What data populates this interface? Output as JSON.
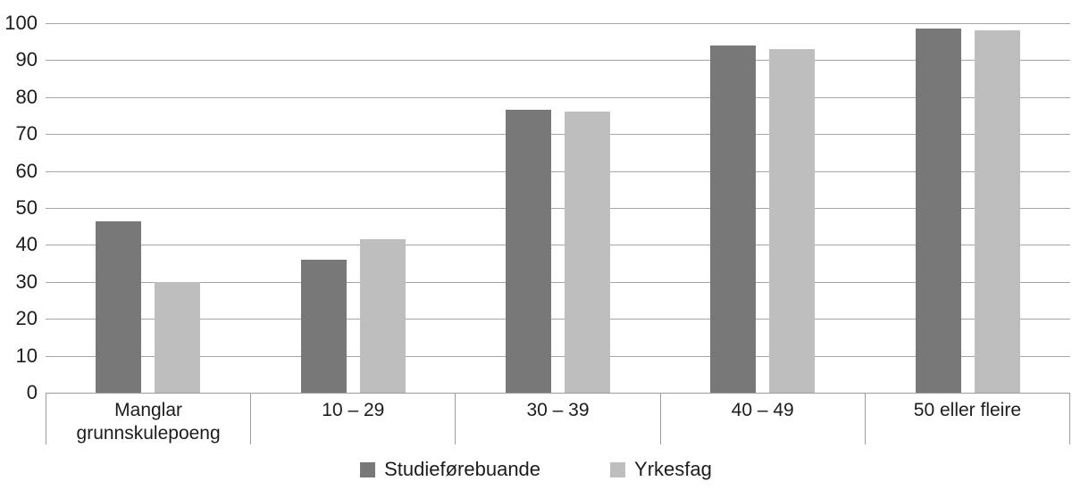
{
  "figure": {
    "background": "#ffffff"
  },
  "chart_data": {
    "type": "bar",
    "title": "",
    "xlabel": "",
    "ylabel": "",
    "categories": [
      "Manglar grunnskulepoeng",
      "10 – 29",
      "30 – 39",
      "40 – 49",
      "50 eller fleire"
    ],
    "series": [
      {
        "name": "Studieførebuande",
        "color": "#787878",
        "values": [
          46.5,
          36,
          76.5,
          94,
          98.5
        ]
      },
      {
        "name": "Yrkesfag",
        "color": "#bebebe",
        "values": [
          30,
          41.5,
          76,
          93,
          98
        ]
      }
    ],
    "ylim": [
      0,
      100
    ],
    "yticks": [
      0,
      10,
      20,
      30,
      40,
      50,
      60,
      70,
      80,
      90,
      100
    ],
    "grid": true,
    "gridline_color": "#a6a6a6",
    "axis_color": "#9b9b9b",
    "text_color": "#1c1c1c",
    "legend_position": "bottom"
  }
}
